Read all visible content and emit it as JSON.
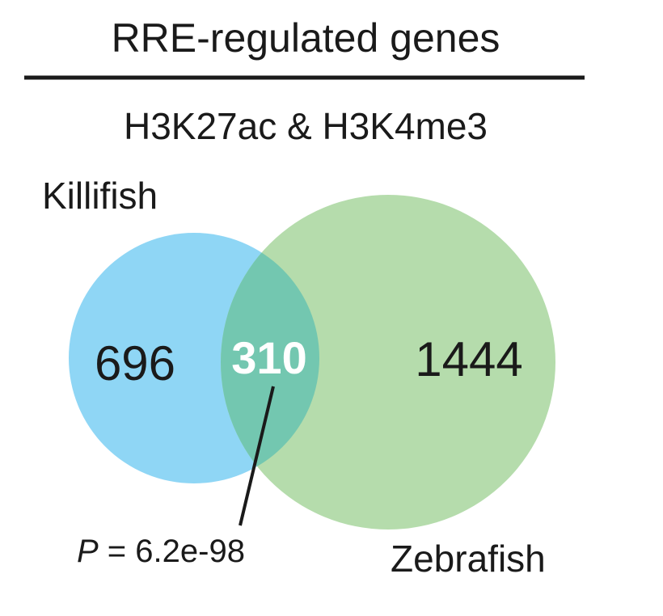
{
  "header": {
    "title": "RRE-regulated genes",
    "subtitle": "H3K27ac & H3K4me3"
  },
  "colors": {
    "killifish": "#8fd6f5",
    "zebrafish": "#b5dcac",
    "overlap": "#73c7b0",
    "line": "#1a1a1a"
  },
  "sets": {
    "killifish": {
      "label": "Killifish",
      "unique_count": "696"
    },
    "zebrafish": {
      "label": "Zebrafish",
      "unique_count": "1444"
    },
    "overlap": {
      "count": "310"
    }
  },
  "stats": {
    "p_symbol": "P",
    "p_equals": " = ",
    "p_value": "6.2e-98"
  }
}
